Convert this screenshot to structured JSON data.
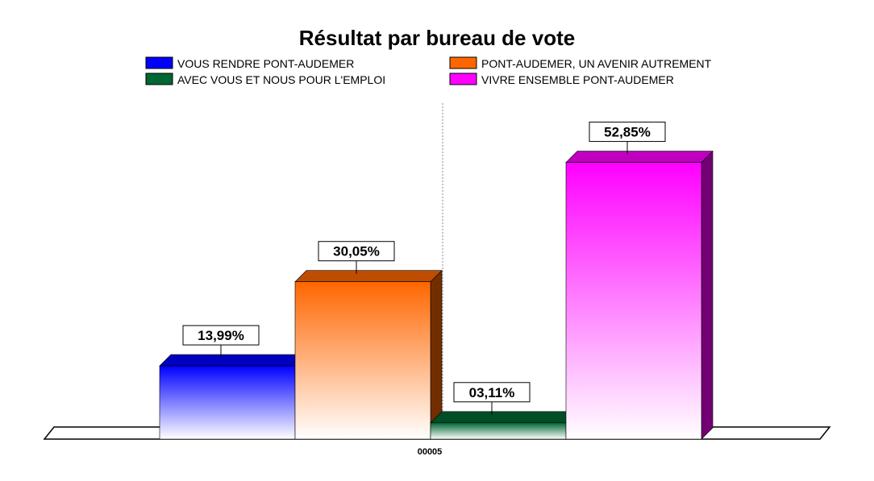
{
  "chart_data": {
    "type": "bar",
    "title": "Résultat par bureau de vote",
    "categories": [
      "00005"
    ],
    "ylim": [
      0,
      60
    ],
    "grid": false,
    "legend_position": "top",
    "series": [
      {
        "name": "VOUS RENDRE PONT-AUDEMER",
        "values": [
          13.99
        ],
        "label": "13,99%",
        "color": "#0000ff"
      },
      {
        "name": "PONT-AUDEMER, UN AVENIR AUTREMENT",
        "values": [
          30.05
        ],
        "label": "30,05%",
        "color": "#ff6600"
      },
      {
        "name": "AVEC VOUS ET NOUS POUR L'EMPLOI",
        "values": [
          3.11
        ],
        "label": "03,11%",
        "color": "#006633"
      },
      {
        "name": "VIVRE ENSEMBLE PONT-AUDEMER",
        "values": [
          52.85
        ],
        "label": "52,85%",
        "color": "#ff00ff"
      }
    ]
  }
}
